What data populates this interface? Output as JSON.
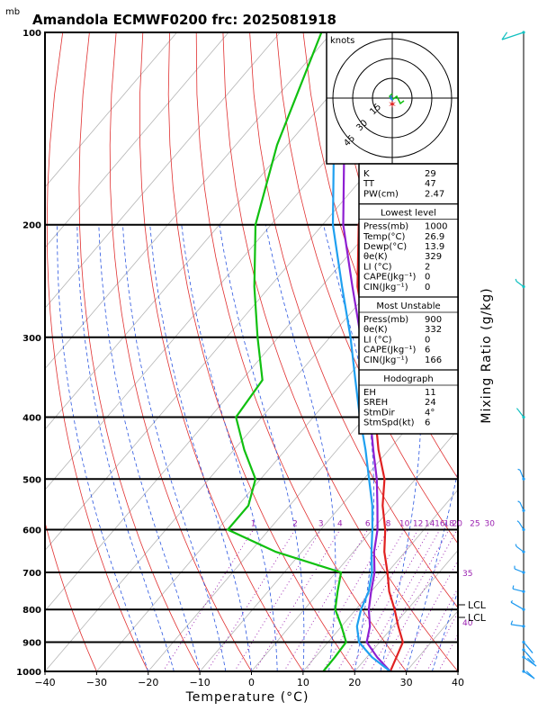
{
  "header": {
    "unit": "mb",
    "title": "Amandola ECMWF0200 frc: 2025081918"
  },
  "chart_data": {
    "type": "skew-t",
    "xlabel": "Temperature (°C)",
    "right_label": "Mixing Ratio (g/kg)",
    "xlim": [
      -40,
      40
    ],
    "ylim": [
      1000,
      100
    ],
    "x_ticks": [
      "−40",
      "−30",
      "−20",
      "−10",
      "0",
      "10",
      "20",
      "30",
      "40"
    ],
    "p_ticks": [
      "100",
      "200",
      "300",
      "400",
      "500",
      "600",
      "700",
      "800",
      "900",
      "1000"
    ],
    "mixing_ratio_labels": [
      "1",
      "2",
      "3",
      "4",
      "6",
      "8",
      "10",
      "12",
      "14",
      "16",
      "18",
      "20",
      "25",
      "30",
      "35",
      "40"
    ],
    "lcl_labels": [
      "LCL",
      "LCL"
    ],
    "series": [
      {
        "name": "temperature",
        "color": "#e02020",
        "points": [
          [
            1000,
            26.9
          ],
          [
            900,
            24.5
          ],
          [
            850,
            21
          ],
          [
            800,
            17.5
          ],
          [
            750,
            13.5
          ],
          [
            700,
            10
          ],
          [
            650,
            6
          ],
          [
            600,
            2.5
          ],
          [
            550,
            -2
          ],
          [
            500,
            -6
          ],
          [
            450,
            -12
          ],
          [
            400,
            -18
          ],
          [
            350,
            -25
          ],
          [
            300,
            -33
          ],
          [
            250,
            -43
          ],
          [
            200,
            -53
          ],
          [
            150,
            -61
          ],
          [
            100,
            -72
          ]
        ]
      },
      {
        "name": "dewpoint",
        "color": "#10c010",
        "points": [
          [
            1000,
            13.9
          ],
          [
            950,
            13.8
          ],
          [
            900,
            13.5
          ],
          [
            850,
            10
          ],
          [
            800,
            6
          ],
          [
            750,
            3.5
          ],
          [
            700,
            1
          ],
          [
            650,
            -15
          ],
          [
            600,
            -28
          ],
          [
            550,
            -28
          ],
          [
            500,
            -31
          ],
          [
            450,
            -38
          ],
          [
            400,
            -45
          ],
          [
            350,
            -46
          ],
          [
            300,
            -54
          ],
          [
            250,
            -63
          ],
          [
            200,
            -73
          ],
          [
            150,
            -82
          ],
          [
            100,
            -92
          ]
        ]
      },
      {
        "name": "parcel",
        "color": "#8e1fd2",
        "points": [
          [
            1000,
            26.9
          ],
          [
            950,
            22
          ],
          [
            900,
            17.5
          ],
          [
            850,
            15.5
          ],
          [
            800,
            12.5
          ],
          [
            750,
            10
          ],
          [
            700,
            7.5
          ],
          [
            650,
            4
          ],
          [
            600,
            1
          ],
          [
            550,
            -3
          ],
          [
            500,
            -7.5
          ],
          [
            450,
            -13
          ],
          [
            400,
            -19
          ],
          [
            350,
            -26
          ],
          [
            300,
            -34
          ],
          [
            250,
            -44
          ],
          [
            200,
            -56
          ],
          [
            150,
            -69
          ],
          [
            120,
            -78
          ]
        ]
      },
      {
        "name": "env-parcel",
        "color": "#1fa0f0",
        "points": [
          [
            1000,
            26.9
          ],
          [
            950,
            21
          ],
          [
            900,
            16
          ],
          [
            850,
            13
          ],
          [
            800,
            11
          ],
          [
            750,
            9.5
          ],
          [
            700,
            7
          ],
          [
            650,
            3.5
          ],
          [
            600,
            0
          ],
          [
            550,
            -4
          ],
          [
            500,
            -9
          ],
          [
            450,
            -14.5
          ],
          [
            400,
            -21
          ],
          [
            350,
            -28
          ],
          [
            300,
            -36
          ],
          [
            250,
            -46
          ],
          [
            200,
            -58
          ],
          [
            150,
            -71
          ],
          [
            120,
            -80
          ]
        ]
      }
    ],
    "hodograph": {
      "label": "knots",
      "rings": [
        "15",
        "30",
        "45"
      ]
    }
  },
  "indices": {
    "top": [
      {
        "label": "K",
        "value": "29"
      },
      {
        "label": "TT",
        "value": "47"
      },
      {
        "label": "PW(cm)",
        "value": "2.47"
      }
    ],
    "lowest": {
      "title": "Lowest level",
      "rows": [
        {
          "label": "Press(mb)",
          "value": "1000"
        },
        {
          "label": "Temp(°C)",
          "value": "26.9"
        },
        {
          "label": "Dewp(°C)",
          "value": "13.9"
        },
        {
          "label": "θe(K)",
          "value": "329"
        },
        {
          "label": "LI (°C)",
          "value": "2"
        },
        {
          "label": "CAPE(Jkg⁻¹)",
          "value": "0"
        },
        {
          "label": "CIN(Jkg⁻¹)",
          "value": "0"
        }
      ]
    },
    "unstable": {
      "title": "Most Unstable",
      "rows": [
        {
          "label": "Press(mb)",
          "value": "900"
        },
        {
          "label": "θe(K)",
          "value": "332"
        },
        {
          "label": "LI (°C)",
          "value": "0"
        },
        {
          "label": "CAPE(Jkg⁻¹)",
          "value": "6"
        },
        {
          "label": "CIN(Jkg⁻¹)",
          "value": "166"
        }
      ]
    },
    "hodo": {
      "title": "Hodograph",
      "rows": [
        {
          "label": "EH",
          "value": "11"
        },
        {
          "label": "SREH",
          "value": "24"
        },
        {
          "label": "StmDir",
          "value": "4°"
        },
        {
          "label": "StmSpd(kt)",
          "value": "6"
        }
      ]
    }
  }
}
